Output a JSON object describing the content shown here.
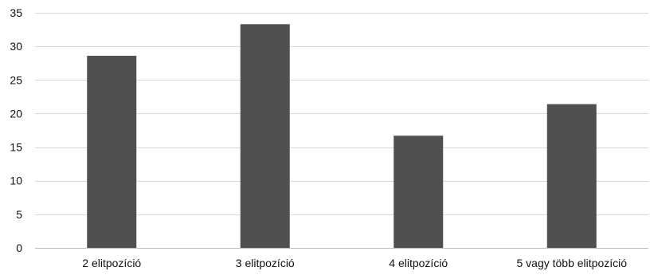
{
  "chart_data": {
    "type": "bar",
    "title": "",
    "xlabel": "",
    "ylabel": "",
    "categories": [
      "2 elitpozíció",
      "3 elitpozíció",
      "4 elitpozíció",
      "5 vagy több elitpozíció"
    ],
    "values": [
      28.6,
      33.3,
      16.7,
      21.4
    ],
    "ylim": [
      0,
      35
    ],
    "yticks": [
      0,
      5,
      10,
      15,
      20,
      25,
      30,
      35
    ],
    "grid": true,
    "legend": "none",
    "bar_color": "#505050",
    "grid_color": "#d9d9d9"
  }
}
